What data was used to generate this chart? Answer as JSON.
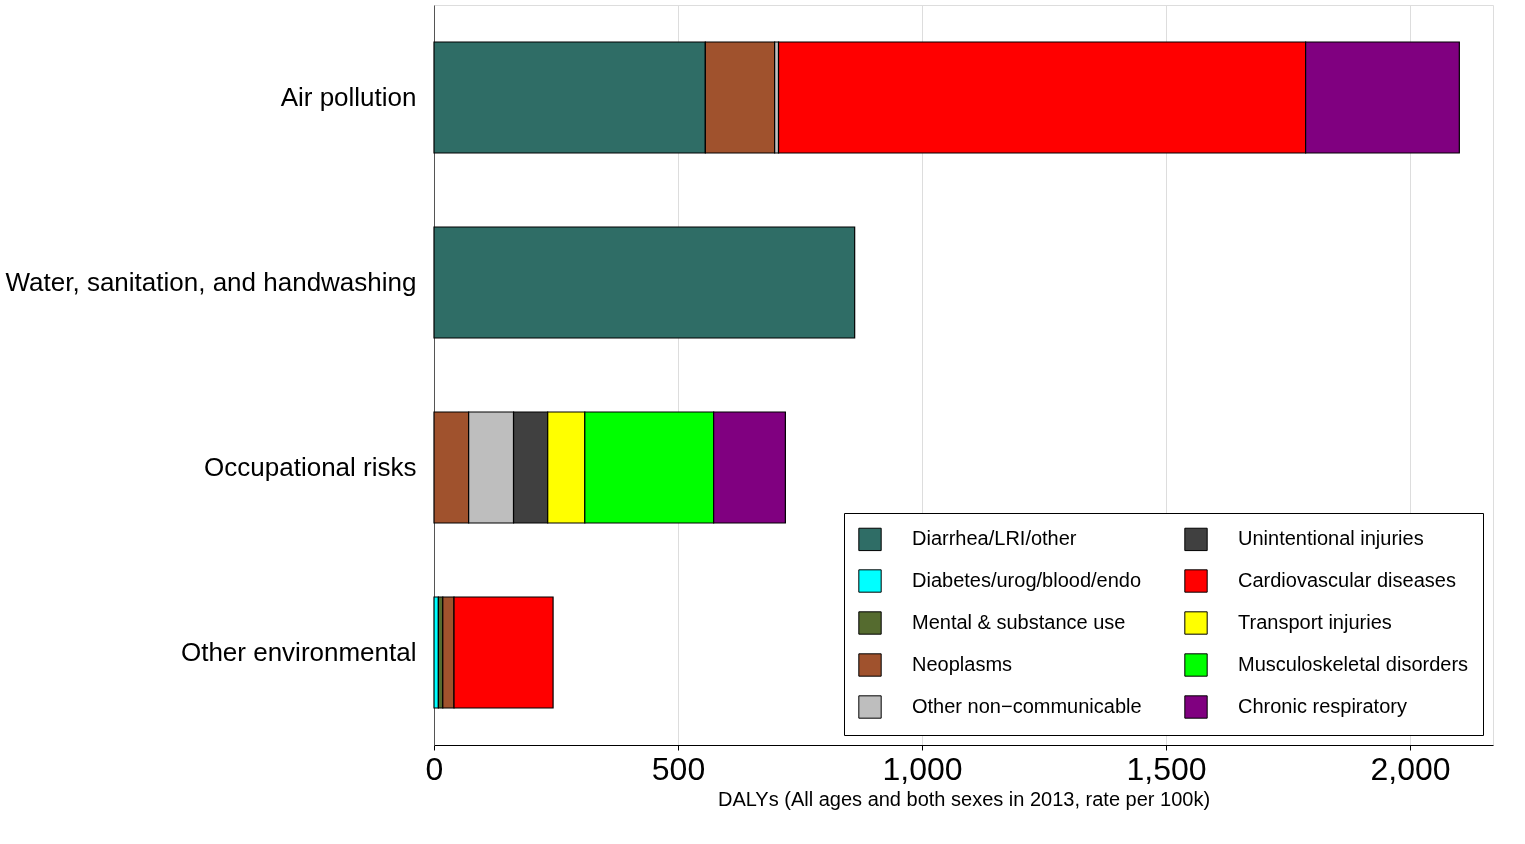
{
  "chart_data": {
    "type": "bar",
    "orientation": "horizontal",
    "stacked": true,
    "xlabel": "DALYs (All ages and both sexes in 2013, rate per 100k)",
    "categories": [
      "Air pollution",
      "Water, sanitation, and handwashing",
      "Occupational risks",
      "Other environmental"
    ],
    "series": [
      {
        "name": "Diarrhea/LRI/other",
        "color": "#2f6d66",
        "values": [
          556,
          862,
          null,
          null
        ]
      },
      {
        "name": "Diabetes/urog/blood/endo",
        "color": "#00ffff",
        "values": [
          null,
          null,
          null,
          9
        ]
      },
      {
        "name": "Mental & substance use",
        "color": "#556b2f",
        "values": [
          null,
          null,
          null,
          9
        ]
      },
      {
        "name": "Neoplasms",
        "color": "#a0522d",
        "values": [
          142,
          null,
          71,
          23
        ]
      },
      {
        "name": "Other non−communicable",
        "color": "#bebebe",
        "values": [
          8,
          null,
          92,
          null
        ]
      },
      {
        "name": "Unintentional injuries",
        "color": "#404040",
        "values": [
          null,
          null,
          70,
          null
        ]
      },
      {
        "name": "Cardiovascular diseases",
        "color": "#ff0000",
        "values": [
          1080,
          null,
          null,
          203
        ]
      },
      {
        "name": "Transport injuries",
        "color": "#ffff00",
        "values": [
          null,
          null,
          76,
          null
        ]
      },
      {
        "name": "Musculoskeletal disorders",
        "color": "#00ff00",
        "values": [
          null,
          null,
          264,
          null
        ]
      },
      {
        "name": "Chronic respiratory",
        "color": "#800080",
        "values": [
          315,
          null,
          147,
          null
        ]
      }
    ],
    "xlim": [
      0,
      2170
    ],
    "xticks": [
      0,
      {
        "value": 500,
        "label": "500"
      },
      {
        "value": 1000,
        "label": "1,000"
      },
      {
        "value": 1500,
        "label": "1,500"
      },
      {
        "value": 2000,
        "label": "2,000"
      }
    ],
    "grid": "x",
    "legend": "bottom right"
  }
}
